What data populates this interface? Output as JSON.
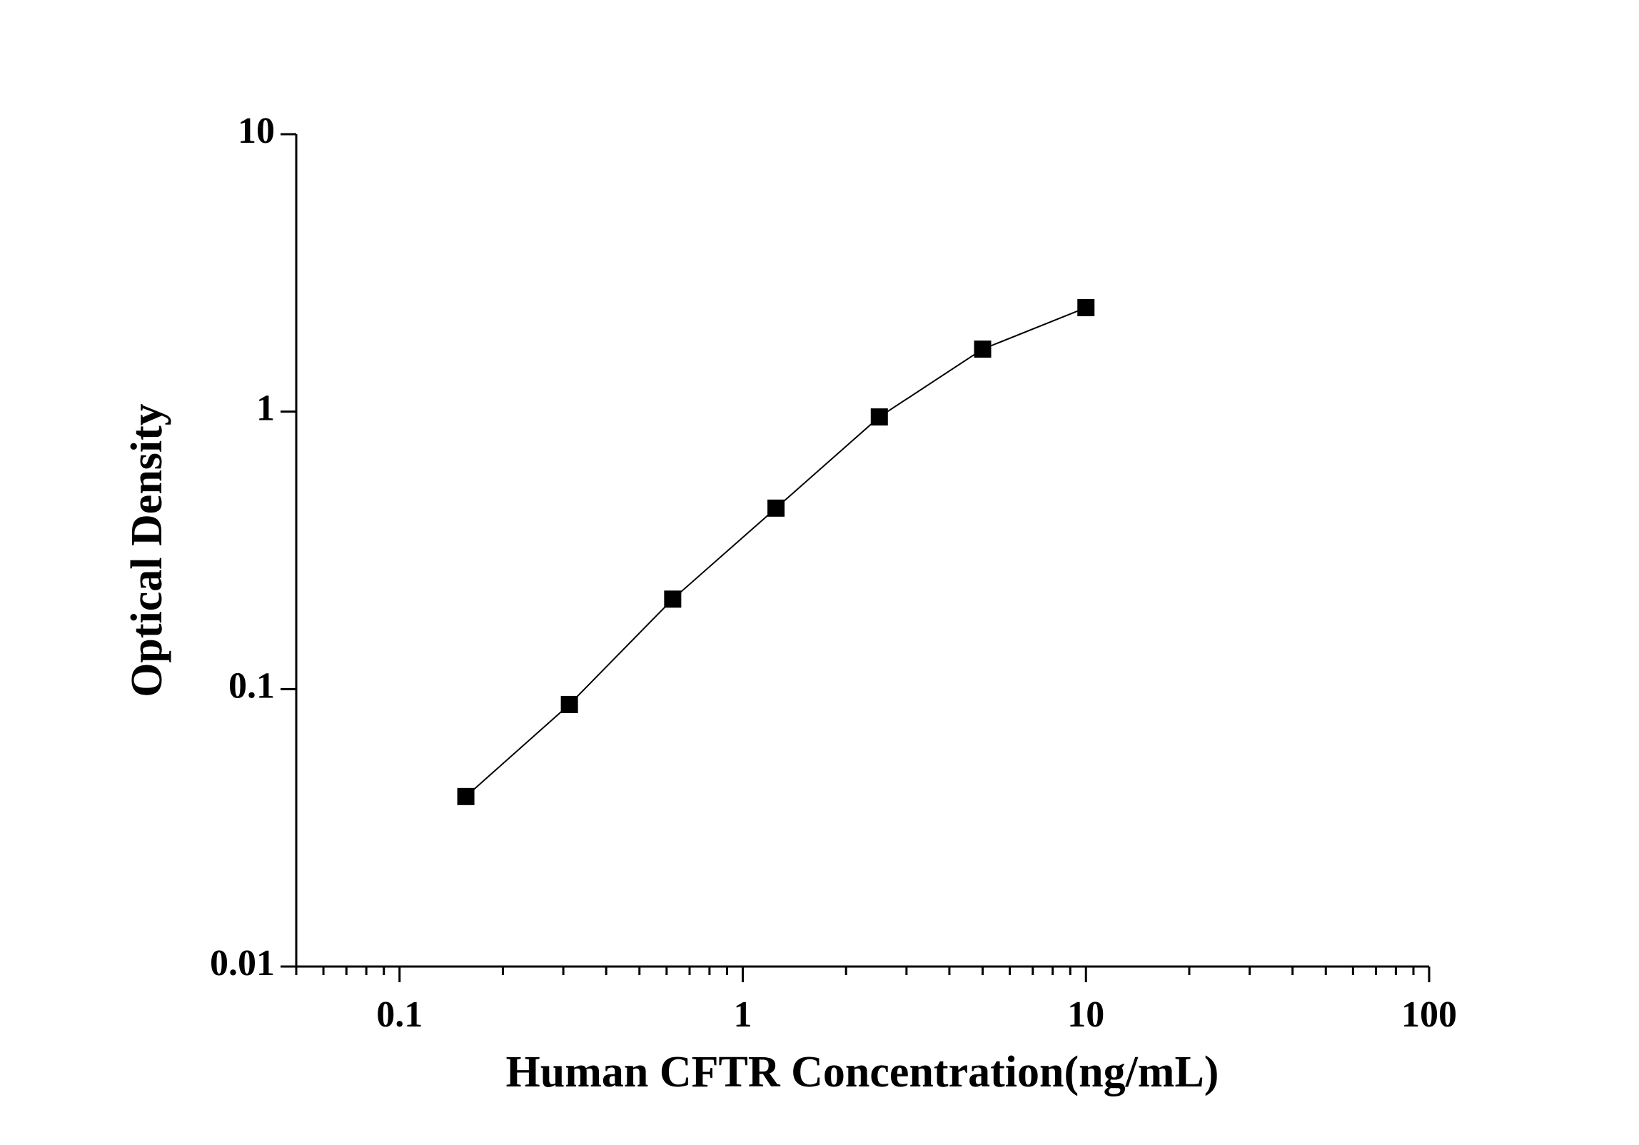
{
  "chart_data": {
    "type": "line",
    "x_label": "Human CFTR Concentration(ng/mL)",
    "y_label": "Optical Density",
    "x": [
      0.156,
      0.3125,
      0.625,
      1.25,
      2.5,
      5,
      10
    ],
    "series": [
      {
        "color": "#000000",
        "values": [
          0.041,
          0.088,
          0.211,
          0.449,
          0.957,
          1.68,
          2.37
        ]
      }
    ],
    "xlim": [
      0.05,
      100
    ],
    "xticks": [
      0.1,
      1,
      10,
      100
    ],
    "ylim": [
      0.01,
      10
    ],
    "yticks": [
      0.01,
      0.1,
      1,
      10
    ],
    "xscale": "log",
    "yscale": "log",
    "markers": "square"
  }
}
